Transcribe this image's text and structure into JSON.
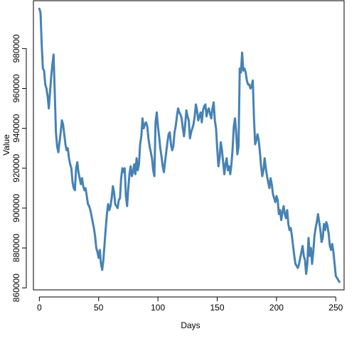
{
  "chart_data": {
    "type": "line",
    "title": "",
    "xlabel": "Days",
    "ylabel": "Value",
    "xlim": [
      -5,
      257
    ],
    "ylim": [
      859000,
      1004000
    ],
    "x_ticks": [
      0,
      50,
      100,
      150,
      200,
      250
    ],
    "y_ticks": [
      860000,
      880000,
      900000,
      920000,
      940000,
      960000,
      980000
    ],
    "grid": false,
    "line_color": "#4682B4",
    "series": [
      {
        "values": [
          [
            0,
            1000000
          ],
          [
            1,
            998000
          ],
          [
            2,
            982000
          ],
          [
            3,
            970000
          ],
          [
            4,
            969000
          ],
          [
            5,
            962000
          ],
          [
            6,
            960000
          ],
          [
            7,
            956000
          ],
          [
            8,
            950000
          ],
          [
            9,
            958000
          ],
          [
            10,
            966000
          ],
          [
            11,
            972000
          ],
          [
            12,
            977000
          ],
          [
            13,
            958000
          ],
          [
            14,
            938000
          ],
          [
            15,
            931000
          ],
          [
            16,
            928000
          ],
          [
            17,
            933000
          ],
          [
            18,
            938000
          ],
          [
            19,
            944000
          ],
          [
            20,
            942000
          ],
          [
            21,
            937000
          ],
          [
            22,
            932000
          ],
          [
            23,
            929000
          ],
          [
            24,
            930000
          ],
          [
            25,
            925000
          ],
          [
            26,
            922000
          ],
          [
            27,
            920000
          ],
          [
            28,
            913000
          ],
          [
            29,
            910000
          ],
          [
            30,
            909000
          ],
          [
            31,
            920000
          ],
          [
            32,
            923000
          ],
          [
            33,
            918000
          ],
          [
            34,
            915000
          ],
          [
            35,
            912000
          ],
          [
            36,
            915000
          ],
          [
            37,
            911000
          ],
          [
            38,
            909000
          ],
          [
            39,
            910000
          ],
          [
            40,
            906000
          ],
          [
            41,
            902000
          ],
          [
            42,
            901000
          ],
          [
            43,
            899000
          ],
          [
            44,
            896000
          ],
          [
            45,
            893000
          ],
          [
            46,
            890000
          ],
          [
            47,
            886000
          ],
          [
            48,
            880000
          ],
          [
            49,
            878000
          ],
          [
            50,
            875000
          ],
          [
            51,
            879000
          ],
          [
            52,
            872000
          ],
          [
            53,
            869000
          ],
          [
            54,
            874000
          ],
          [
            55,
            882000
          ],
          [
            56,
            890000
          ],
          [
            57,
            897000
          ],
          [
            58,
            902000
          ],
          [
            59,
            899000
          ],
          [
            60,
            901000
          ],
          [
            61,
            905000
          ],
          [
            62,
            911000
          ],
          [
            63,
            908000
          ],
          [
            64,
            902000
          ],
          [
            65,
            901000
          ],
          [
            66,
            900000
          ],
          [
            67,
            904000
          ],
          [
            68,
            905000
          ],
          [
            69,
            915000
          ],
          [
            70,
            920000
          ],
          [
            71,
            918000
          ],
          [
            72,
            920000
          ],
          [
            73,
            906000
          ],
          [
            74,
            901000
          ],
          [
            75,
            910000
          ],
          [
            76,
            917000
          ],
          [
            77,
            921000
          ],
          [
            78,
            916000
          ],
          [
            79,
            918000
          ],
          [
            80,
            922000
          ],
          [
            81,
            917000
          ],
          [
            82,
            925000
          ],
          [
            83,
            919000
          ],
          [
            84,
            922000
          ],
          [
            85,
            932000
          ],
          [
            86,
            936000
          ],
          [
            87,
            945000
          ],
          [
            88,
            940000
          ],
          [
            89,
            942000
          ],
          [
            90,
            943000
          ],
          [
            91,
            941000
          ],
          [
            92,
            935000
          ],
          [
            93,
            931000
          ],
          [
            94,
            928000
          ],
          [
            95,
            925000
          ],
          [
            96,
            919000
          ],
          [
            97,
            916000
          ],
          [
            98,
            943000
          ],
          [
            99,
            948000
          ],
          [
            100,
            941000
          ],
          [
            101,
            936000
          ],
          [
            102,
            930000
          ],
          [
            103,
            926000
          ],
          [
            104,
            921000
          ],
          [
            105,
            918000
          ],
          [
            106,
            923000
          ],
          [
            107,
            928000
          ],
          [
            108,
            933000
          ],
          [
            109,
            937000
          ],
          [
            110,
            938000
          ],
          [
            111,
            932000
          ],
          [
            112,
            929000
          ],
          [
            113,
            931000
          ],
          [
            114,
            938000
          ],
          [
            115,
            941000
          ],
          [
            116,
            946000
          ],
          [
            117,
            950000
          ],
          [
            118,
            948000
          ],
          [
            119,
            947000
          ],
          [
            120,
            945000
          ],
          [
            121,
            940000
          ],
          [
            122,
            936000
          ],
          [
            123,
            942000
          ],
          [
            124,
            949000
          ],
          [
            125,
            946000
          ],
          [
            126,
            944000
          ],
          [
            127,
            935000
          ],
          [
            128,
            938000
          ],
          [
            129,
            940000
          ],
          [
            130,
            942000
          ],
          [
            131,
            946000
          ],
          [
            132,
            952000
          ],
          [
            133,
            949000
          ],
          [
            134,
            944000
          ],
          [
            135,
            946000
          ],
          [
            136,
            948000
          ],
          [
            137,
            943000
          ],
          [
            138,
            949000
          ],
          [
            139,
            951000
          ],
          [
            140,
            952000
          ],
          [
            141,
            946000
          ],
          [
            142,
            949000
          ],
          [
            143,
            950000
          ],
          [
            144,
            947000
          ],
          [
            145,
            945000
          ],
          [
            146,
            950000
          ],
          [
            147,
            953000
          ],
          [
            148,
            944000
          ],
          [
            149,
            940000
          ],
          [
            150,
            930000
          ],
          [
            151,
            921000
          ],
          [
            152,
            925000
          ],
          [
            153,
            933000
          ],
          [
            154,
            929000
          ],
          [
            155,
            923000
          ],
          [
            156,
            917000
          ],
          [
            157,
            922000
          ],
          [
            158,
            925000
          ],
          [
            159,
            919000
          ],
          [
            160,
            921000
          ],
          [
            161,
            917000
          ],
          [
            162,
            922000
          ],
          [
            163,
            930000
          ],
          [
            164,
            941000
          ],
          [
            165,
            945000
          ],
          [
            166,
            938000
          ],
          [
            167,
            927000
          ],
          [
            168,
            931000
          ],
          [
            169,
            970000
          ],
          [
            170,
            968000
          ],
          [
            171,
            978000
          ],
          [
            172,
            969000
          ],
          [
            173,
            970000
          ],
          [
            174,
            968000
          ],
          [
            175,
            964000
          ],
          [
            176,
            962000
          ],
          [
            177,
            962000
          ],
          [
            178,
            960000
          ],
          [
            179,
            961000
          ],
          [
            180,
            964000
          ],
          [
            181,
            945000
          ],
          [
            182,
            932000
          ],
          [
            183,
            934000
          ],
          [
            184,
            937000
          ],
          [
            185,
            934000
          ],
          [
            186,
            928000
          ],
          [
            187,
            921000
          ],
          [
            188,
            916000
          ],
          [
            189,
            919000
          ],
          [
            190,
            925000
          ],
          [
            191,
            920000
          ],
          [
            192,
            916000
          ],
          [
            193,
            913000
          ],
          [
            194,
            910000
          ],
          [
            195,
            915000
          ],
          [
            196,
            912000
          ],
          [
            197,
            907000
          ],
          [
            198,
            905000
          ],
          [
            199,
            903000
          ],
          [
            200,
            906000
          ],
          [
            201,
            904000
          ],
          [
            202,
            897000
          ],
          [
            203,
            899000
          ],
          [
            204,
            894000
          ],
          [
            205,
            898000
          ],
          [
            206,
            901000
          ],
          [
            207,
            897000
          ],
          [
            208,
            895000
          ],
          [
            209,
            899000
          ],
          [
            210,
            892000
          ],
          [
            211,
            889000
          ],
          [
            212,
            890000
          ],
          [
            213,
            886000
          ],
          [
            214,
            881000
          ],
          [
            215,
            876000
          ],
          [
            216,
            872000
          ],
          [
            217,
            871000
          ],
          [
            218,
            870000
          ],
          [
            219,
            872000
          ],
          [
            220,
            875000
          ],
          [
            221,
            878000
          ],
          [
            222,
            881000
          ],
          [
            223,
            876000
          ],
          [
            224,
            874000
          ],
          [
            225,
            867000
          ],
          [
            226,
            872000
          ],
          [
            227,
            885000
          ],
          [
            228,
            876000
          ],
          [
            229,
            880000
          ],
          [
            230,
            872000
          ],
          [
            231,
            878000
          ],
          [
            232,
            886000
          ],
          [
            233,
            890000
          ],
          [
            234,
            893000
          ],
          [
            235,
            897000
          ],
          [
            236,
            893000
          ],
          [
            237,
            889000
          ],
          [
            238,
            883000
          ],
          [
            239,
            885000
          ],
          [
            240,
            892000
          ],
          [
            241,
            889000
          ],
          [
            242,
            893000
          ],
          [
            243,
            891000
          ],
          [
            244,
            887000
          ],
          [
            245,
            881000
          ],
          [
            246,
            879000
          ],
          [
            247,
            882000
          ],
          [
            248,
            878000
          ],
          [
            249,
            872000
          ],
          [
            250,
            866000
          ],
          [
            251,
            865000
          ],
          [
            252,
            864000
          ],
          [
            253,
            863000
          ]
        ]
      }
    ]
  }
}
